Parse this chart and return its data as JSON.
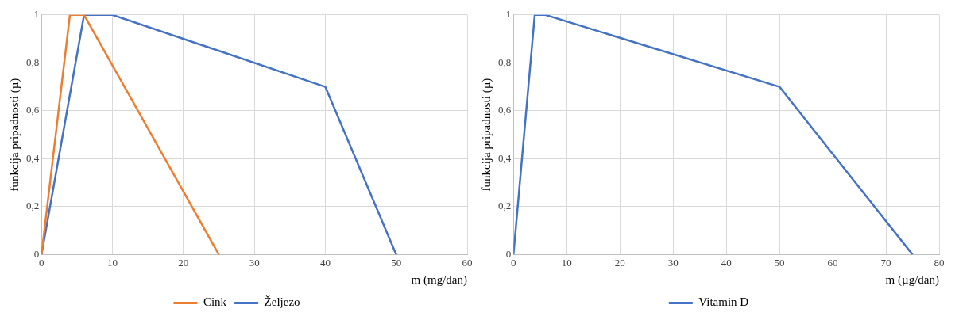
{
  "chart_data": [
    {
      "type": "line",
      "xlabel": "m (mg/dan)",
      "ylabel": "funkcija pripadnosti (µ)",
      "xlim": [
        0,
        60
      ],
      "xticks": [
        0,
        10,
        20,
        30,
        40,
        50,
        60
      ],
      "ylim": [
        0,
        1
      ],
      "yticks": [
        {
          "value": 0,
          "label": "0"
        },
        {
          "value": 0.2,
          "label": "0,2"
        },
        {
          "value": 0.4,
          "label": "0,4"
        },
        {
          "value": 0.6,
          "label": "0,6"
        },
        {
          "value": 0.8,
          "label": "0,8"
        },
        {
          "value": 1,
          "label": "1"
        }
      ],
      "grid": true,
      "legend": "bottom",
      "marker": "none",
      "series": [
        {
          "name": "Cink",
          "color": "#ed7d31",
          "x": [
            0,
            4,
            6,
            25
          ],
          "values": [
            0,
            1,
            1,
            0
          ]
        },
        {
          "name": "Željezo",
          "color": "#4472c4",
          "x": [
            0,
            6,
            10,
            40,
            50
          ],
          "values": [
            0,
            1,
            1,
            0.7,
            0
          ]
        }
      ]
    },
    {
      "type": "line",
      "xlabel": "m (µg/dan)",
      "ylabel": "funkcija pripadnosti (µ)",
      "xlim": [
        0,
        80
      ],
      "xticks": [
        0,
        10,
        20,
        30,
        40,
        50,
        60,
        70,
        80
      ],
      "ylim": [
        0,
        1
      ],
      "yticks": [
        {
          "value": 0,
          "label": "0"
        },
        {
          "value": 0.2,
          "label": "0,2"
        },
        {
          "value": 0.4,
          "label": "0,4"
        },
        {
          "value": 0.6,
          "label": "0,6"
        },
        {
          "value": 0.8,
          "label": "0,8"
        },
        {
          "value": 1,
          "label": "1"
        }
      ],
      "grid": true,
      "legend": "bottom",
      "marker": "none",
      "series": [
        {
          "name": "Vitamin D",
          "color": "#4472c4",
          "x": [
            0,
            4,
            6,
            50,
            75
          ],
          "values": [
            0,
            1,
            1,
            0.7,
            0
          ]
        }
      ]
    }
  ]
}
